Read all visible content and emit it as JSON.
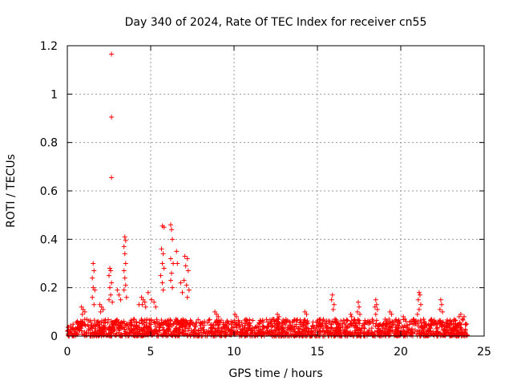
{
  "chart_data": {
    "type": "scatter",
    "title": "Day 340 of 2024, Rate Of TEC Index for receiver cn55",
    "xlabel": "GPS time / hours",
    "ylabel": "ROTI / TECUs",
    "xlim": [
      0,
      25
    ],
    "ylim": [
      0,
      1.2
    ],
    "x_ticks": [
      0,
      5,
      10,
      15,
      20,
      25
    ],
    "x_tick_labels": [
      "0",
      "5",
      "10",
      "15",
      "20",
      "25"
    ],
    "y_ticks": [
      0,
      0.2,
      0.4,
      0.6,
      0.8,
      1.0,
      1.2
    ],
    "y_tick_labels": [
      "0",
      "0.2",
      "0.4",
      "0.6",
      "0.8",
      "1",
      "1.2"
    ],
    "grid": true,
    "marker": "+",
    "color": "#ff0000",
    "series": [
      {
        "name": "ROTI",
        "points": [
          [
            2.65,
            1.165
          ],
          [
            2.65,
            0.905
          ],
          [
            2.65,
            0.655
          ],
          [
            3.45,
            0.41
          ],
          [
            3.5,
            0.395
          ],
          [
            3.4,
            0.37
          ],
          [
            3.45,
            0.34
          ],
          [
            3.5,
            0.3
          ],
          [
            3.4,
            0.27
          ],
          [
            3.45,
            0.24
          ],
          [
            3.5,
            0.21
          ],
          [
            3.4,
            0.19
          ],
          [
            3.55,
            0.16
          ],
          [
            5.7,
            0.455
          ],
          [
            5.8,
            0.45
          ],
          [
            5.65,
            0.36
          ],
          [
            5.75,
            0.34
          ],
          [
            5.7,
            0.3
          ],
          [
            5.8,
            0.28
          ],
          [
            5.6,
            0.25
          ],
          [
            5.7,
            0.22
          ],
          [
            5.75,
            0.19
          ],
          [
            6.2,
            0.46
          ],
          [
            6.25,
            0.44
          ],
          [
            6.3,
            0.4
          ],
          [
            6.2,
            0.32
          ],
          [
            6.35,
            0.3
          ],
          [
            6.25,
            0.26
          ],
          [
            6.2,
            0.23
          ],
          [
            6.3,
            0.2
          ],
          [
            6.55,
            0.35
          ],
          [
            6.6,
            0.3
          ],
          [
            7.05,
            0.33
          ],
          [
            7.2,
            0.32
          ],
          [
            7.1,
            0.29
          ],
          [
            7.25,
            0.27
          ],
          [
            7.0,
            0.23
          ],
          [
            7.15,
            0.21
          ],
          [
            7.3,
            0.19
          ],
          [
            7.2,
            0.16
          ],
          [
            6.8,
            0.22
          ],
          [
            6.9,
            0.18
          ],
          [
            1.55,
            0.3
          ],
          [
            1.6,
            0.27
          ],
          [
            1.5,
            0.24
          ],
          [
            1.55,
            0.2
          ],
          [
            1.65,
            0.19
          ],
          [
            1.5,
            0.16
          ],
          [
            1.6,
            0.13
          ],
          [
            2.55,
            0.28
          ],
          [
            2.6,
            0.27
          ],
          [
            2.5,
            0.25
          ],
          [
            2.65,
            0.22
          ],
          [
            2.55,
            0.2
          ],
          [
            2.6,
            0.17
          ],
          [
            2.5,
            0.15
          ],
          [
            2.7,
            0.14
          ],
          [
            3.0,
            0.19
          ],
          [
            3.1,
            0.17
          ],
          [
            3.2,
            0.15
          ],
          [
            4.45,
            0.16
          ],
          [
            4.55,
            0.15
          ],
          [
            4.65,
            0.14
          ],
          [
            4.5,
            0.13
          ],
          [
            4.7,
            0.12
          ],
          [
            4.85,
            0.18
          ],
          [
            4.3,
            0.13
          ],
          [
            5.05,
            0.15
          ],
          [
            5.2,
            0.14
          ],
          [
            5.3,
            0.12
          ],
          [
            0.85,
            0.12
          ],
          [
            0.95,
            0.11
          ],
          [
            1.05,
            0.1
          ],
          [
            0.9,
            0.09
          ],
          [
            1.95,
            0.13
          ],
          [
            2.05,
            0.12
          ],
          [
            2.15,
            0.11
          ],
          [
            2.0,
            0.1
          ],
          [
            8.85,
            0.1
          ],
          [
            8.95,
            0.09
          ],
          [
            9.05,
            0.08
          ],
          [
            10.05,
            0.09
          ],
          [
            10.15,
            0.08
          ],
          [
            12.6,
            0.09
          ],
          [
            12.7,
            0.08
          ],
          [
            12.65,
            0.07
          ],
          [
            14.25,
            0.1
          ],
          [
            14.35,
            0.09
          ],
          [
            15.9,
            0.17
          ],
          [
            15.85,
            0.15
          ],
          [
            16.0,
            0.13
          ],
          [
            15.95,
            0.11
          ],
          [
            17.0,
            0.09
          ],
          [
            17.05,
            0.08
          ],
          [
            17.45,
            0.14
          ],
          [
            17.5,
            0.12
          ],
          [
            17.4,
            0.1
          ],
          [
            17.55,
            0.09
          ],
          [
            18.5,
            0.15
          ],
          [
            18.55,
            0.13
          ],
          [
            18.45,
            0.12
          ],
          [
            18.6,
            0.11
          ],
          [
            18.5,
            0.09
          ],
          [
            19.35,
            0.1
          ],
          [
            19.45,
            0.09
          ],
          [
            20.15,
            0.08
          ],
          [
            20.25,
            0.07
          ],
          [
            21.1,
            0.18
          ],
          [
            21.15,
            0.17
          ],
          [
            21.05,
            0.15
          ],
          [
            21.2,
            0.13
          ],
          [
            21.1,
            0.11
          ],
          [
            21.0,
            0.09
          ],
          [
            22.4,
            0.15
          ],
          [
            22.45,
            0.13
          ],
          [
            22.35,
            0.11
          ],
          [
            22.5,
            0.1
          ],
          [
            23.5,
            0.08
          ],
          [
            23.6,
            0.09
          ],
          [
            23.7,
            0.07
          ],
          [
            23.8,
            0.08
          ]
        ],
        "baseline_band": {
          "x_range": [
            0,
            24
          ],
          "typical_range": [
            0.0,
            0.07
          ]
        }
      }
    ]
  }
}
